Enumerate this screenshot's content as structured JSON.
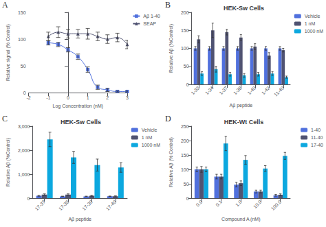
{
  "chart_data": [
    {
      "type": "line",
      "annotation": "A",
      "xlabel": "Log Concentration (nM)",
      "ylabel": "Relative signal (% Control)",
      "x": [
        -1,
        -0.5,
        0,
        0.5,
        1,
        1.5,
        2,
        2.5,
        3
      ],
      "xlim": [
        -2,
        3
      ],
      "xticks": [
        -2,
        -1,
        0,
        1,
        2,
        3
      ],
      "ylim": [
        0,
        150
      ],
      "yticks": [
        0,
        50,
        100,
        150
      ],
      "grid": false,
      "legend": "upper right",
      "series": [
        {
          "name": "Aβ 1-40",
          "marker": "square",
          "line_style": "solid",
          "values": [
            93,
            90,
            80,
            67,
            43,
            10,
            5,
            2,
            2
          ],
          "errors": [
            4,
            4,
            4,
            5,
            5,
            4,
            3,
            1,
            1
          ]
        },
        {
          "name": "SEAP",
          "marker": "triangle",
          "line_style": "solid",
          "values": [
            105,
            113,
            110,
            110,
            110,
            105,
            100,
            103,
            90
          ],
          "errors": [
            8,
            10,
            8,
            8,
            10,
            8,
            8,
            8,
            8
          ]
        }
      ]
    },
    {
      "type": "bar",
      "annotation": "B",
      "title": "HEK-Sw Cells",
      "xlabel": "Aβ peptide",
      "ylabel": "Relative Aβ (%Control)",
      "categories": [
        "1-33",
        "1-34",
        "1-37",
        "1-38",
        "1-40",
        "1-42",
        "11-40"
      ],
      "ylim": [
        0,
        200
      ],
      "yticks": [
        0,
        50,
        100,
        150,
        200
      ],
      "grid": false,
      "legend": "upper right",
      "series": [
        {
          "name": "Vehicle",
          "values": [
            100,
            100,
            100,
            100,
            100,
            100,
            100
          ],
          "errors": [
            5,
            5,
            5,
            5,
            5,
            5,
            5
          ]
        },
        {
          "name": "1 nM",
          "values": [
            125,
            150,
            145,
            130,
            105,
            80,
            95
          ],
          "errors": [
            10,
            20,
            8,
            8,
            8,
            8,
            5
          ]
        },
        {
          "name": "1000 nM",
          "values": [
            30,
            42,
            28,
            25,
            28,
            30,
            20
          ],
          "errors": [
            5,
            8,
            5,
            5,
            5,
            5,
            3
          ]
        }
      ]
    },
    {
      "type": "bar",
      "annotation": "C",
      "title": "HEK-Sw Cells",
      "xlabel": "Aβ peptide",
      "ylabel": "Relative Aβ (%Control)",
      "categories": [
        "17-37",
        "17-38",
        "17-39",
        "17-40"
      ],
      "ylim": [
        0,
        3000
      ],
      "yticks": [
        0,
        1000,
        2000,
        3000
      ],
      "grid": false,
      "legend": "upper right",
      "series": [
        {
          "name": "Vehicle",
          "values": [
            100,
            75,
            75,
            80
          ],
          "errors": [
            20,
            10,
            10,
            10
          ]
        },
        {
          "name": "1 nM",
          "values": [
            150,
            150,
            100,
            80
          ],
          "errors": [
            30,
            30,
            20,
            20
          ]
        },
        {
          "name": "1000 nM",
          "values": [
            2450,
            1700,
            1380,
            1280
          ],
          "errors": [
            300,
            250,
            250,
            200
          ]
        }
      ]
    },
    {
      "type": "bar",
      "annotation": "D",
      "title": "HEK-Wt Cells",
      "xlabel": "Compound A (nM)",
      "ylabel": "Relative Aβ (% Control)",
      "categories": [
        "0.0",
        "0.1",
        "1.0",
        "10.0",
        "100.0"
      ],
      "ylim": [
        0,
        250
      ],
      "yticks": [
        0,
        50,
        100,
        150,
        200,
        250
      ],
      "grid": false,
      "legend": "upper right",
      "series": [
        {
          "name": "1-40",
          "values": [
            100,
            75,
            47,
            23,
            10
          ],
          "errors": [
            8,
            8,
            8,
            5,
            3
          ]
        },
        {
          "name": "11-40",
          "values": [
            100,
            75,
            52,
            23,
            12
          ],
          "errors": [
            10,
            8,
            8,
            5,
            3
          ]
        },
        {
          "name": "17-40",
          "values": [
            100,
            190,
            133,
            103,
            147
          ],
          "errors": [
            8,
            25,
            15,
            10,
            12
          ]
        }
      ]
    }
  ]
}
